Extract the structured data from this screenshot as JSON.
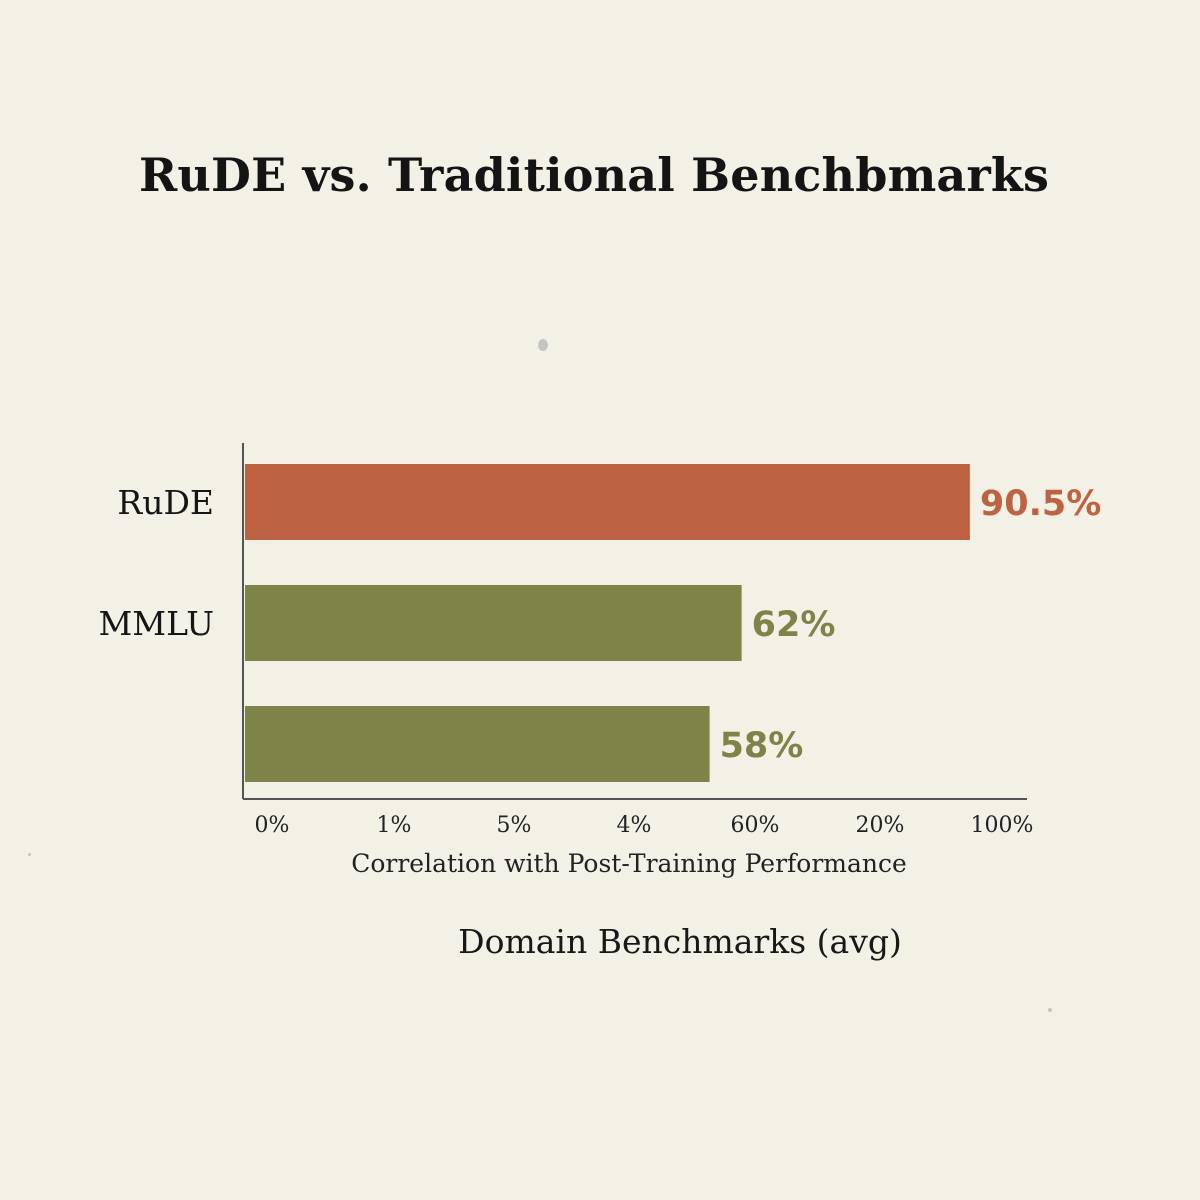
{
  "chart_data": {
    "type": "bar",
    "orientation": "horizontal",
    "title": "RuDE vs. Traditional Benchbmarks",
    "xlabel": "Correlation with Post-Training Performance",
    "caption": "Domain Benchmarks (avg)",
    "categories": [
      "RuDE",
      "MMLU",
      ""
    ],
    "values": [
      90.5,
      62,
      58
    ],
    "value_labels": [
      "90.5%",
      "62%",
      "58%"
    ],
    "bar_colors": [
      "#bd6341",
      "#7e8348",
      "#7e8348"
    ],
    "label_colors": [
      "#bd6341",
      "#7e8348",
      "#7e8348"
    ],
    "x_tick_labels": [
      "0%",
      "1%",
      "5%",
      "4%",
      "60%",
      "20%",
      "100%"
    ],
    "grid": false,
    "legend": "none"
  }
}
